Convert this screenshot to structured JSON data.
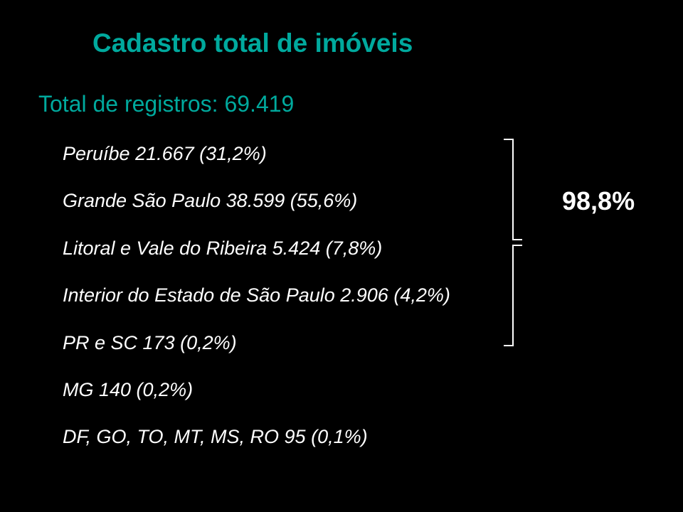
{
  "title": {
    "text": "Cadastro total de imóveis",
    "color": "#00a99d",
    "fontsize": 37
  },
  "subtitle": {
    "text": "Total de registros: 69.419",
    "color": "#00a99d",
    "fontsize": 32
  },
  "items": [
    {
      "text": "Peruíbe 21.667 (31,2%)"
    },
    {
      "text": "Grande São Paulo 38.599 (55,6%)"
    },
    {
      "text": "Litoral e Vale do Ribeira 5.424 (7,8%)"
    },
    {
      "text": "Interior do Estado de São Paulo 2.906 (4,2%)"
    },
    {
      "text": "PR e SC 173 (0,2%)"
    },
    {
      "text": "MG 140 (0,2%)"
    },
    {
      "text": "DF, GO, TO, MT, MS, RO 95 (0,1%)"
    }
  ],
  "items_style": {
    "color": "#ffffff",
    "fontsize": 27
  },
  "highlight": {
    "text": "98,8%",
    "color": "#ffffff",
    "fontsize": 36
  },
  "bracket_color": "#ffffff",
  "background_color": "#000000"
}
